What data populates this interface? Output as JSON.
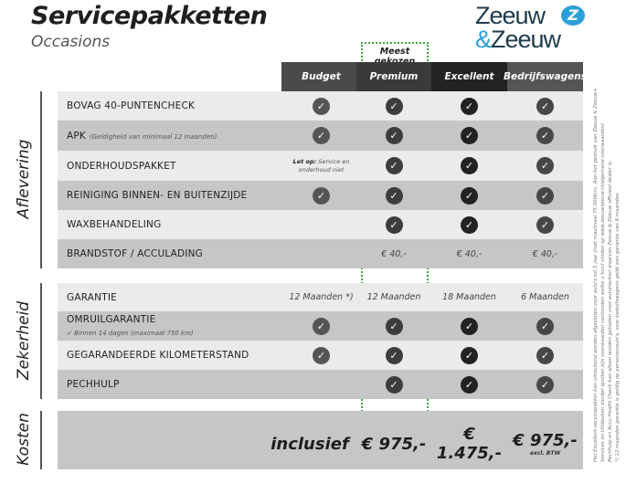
{
  "header": {
    "title": "Servicepakketten",
    "subtitle": "Occasions",
    "logo_text": [
      "Zeeuw",
      "&",
      "Zeeuw"
    ],
    "badge": "Meest gekozen"
  },
  "colors": {
    "highlight": "#3aa83a",
    "logo": "#1f3b4d",
    "logo_accent": "#2aa0d8"
  },
  "columns": [
    {
      "label": "Budget",
      "bg": "#4a4a4a",
      "check": "#555555"
    },
    {
      "label": "Premium",
      "bg": "#3a3a3a",
      "check": "#3d3d3d"
    },
    {
      "label": "Excellent",
      "bg": "#232323",
      "check": "#222222"
    },
    {
      "label": "Bedrijfswagens",
      "bg": "#555555",
      "check": "#474747"
    }
  ],
  "sections": [
    {
      "label": "Aflevering",
      "rows": [
        {
          "label": "BOVAG 40-PUNTENCHECK",
          "cells": [
            "check",
            "check",
            "check",
            "check"
          ]
        },
        {
          "label": "APK",
          "note": "(Geldigheid van minimaal 12 maanden)",
          "cells": [
            "check",
            "check",
            "check",
            "check"
          ]
        },
        {
          "label": "ONDERHOUDSPAKKET",
          "cells": [
            "letop",
            "check",
            "check",
            "check"
          ],
          "letop_bold": "Let op:",
          "letop_text": "Service en onderhoud niet"
        },
        {
          "label": "REINIGING BINNEN- EN BUITENZIJDE",
          "cells": [
            "check",
            "check",
            "check",
            "check"
          ]
        },
        {
          "label": "WAXBEHANDELING",
          "cells": [
            "",
            "check",
            "check",
            "check"
          ]
        },
        {
          "label": "BRANDSTOF / ACCULADING",
          "cells": [
            "",
            "€ 40,-",
            "€ 40,-",
            "€ 40,-"
          ]
        }
      ]
    },
    {
      "label": "Zekerheid",
      "rows": [
        {
          "label": "GARANTIE",
          "cells": [
            "12 Maanden *)",
            "12 Maanden",
            "18 Maanden",
            "6 Maanden"
          ]
        },
        {
          "label": "OMRUILGARANTIE",
          "sub": "✓   Binnen 14 dagen (maximaal 750 km)",
          "cells": [
            "check",
            "check",
            "check",
            "check"
          ]
        },
        {
          "label": "GEGARANDEERDE KILOMETERSTAND",
          "cells": [
            "check",
            "check",
            "check",
            "check"
          ]
        },
        {
          "label": "PECHHULP",
          "cells": [
            "",
            "check",
            "check",
            "check"
          ]
        }
      ]
    },
    {
      "label": "Kosten",
      "prices": [
        "inclusief",
        "€ 975,-",
        "€ 1.475,-",
        "€ 975,-"
      ],
      "price_note": "excl. BTW"
    }
  ],
  "footnotes": [
    "Het Excellent-servicepakket kan uitsluitend worden afgesloten voor auto's tot 5 jaar (met maximaal 75.000km). Aan het gebruik van Zeeuw & Zeeuw+",
    "Services en Uitdeuken zonder spuiten zijn voorwaarden verbonden welke u kunt vinden op www.zeeuwzeeuw.nl/algemene-voorwaarden/.",
    "Pechhulp en Accu Health Check kan alleen worden geboden voor automerken waarvan Zeeuw & Zeeuw officieel dealer is.",
    "*) 12 maanden garantie is geldig op personenauto's, voor bedrijfswagens geldt een garantie van 6 maanden."
  ]
}
